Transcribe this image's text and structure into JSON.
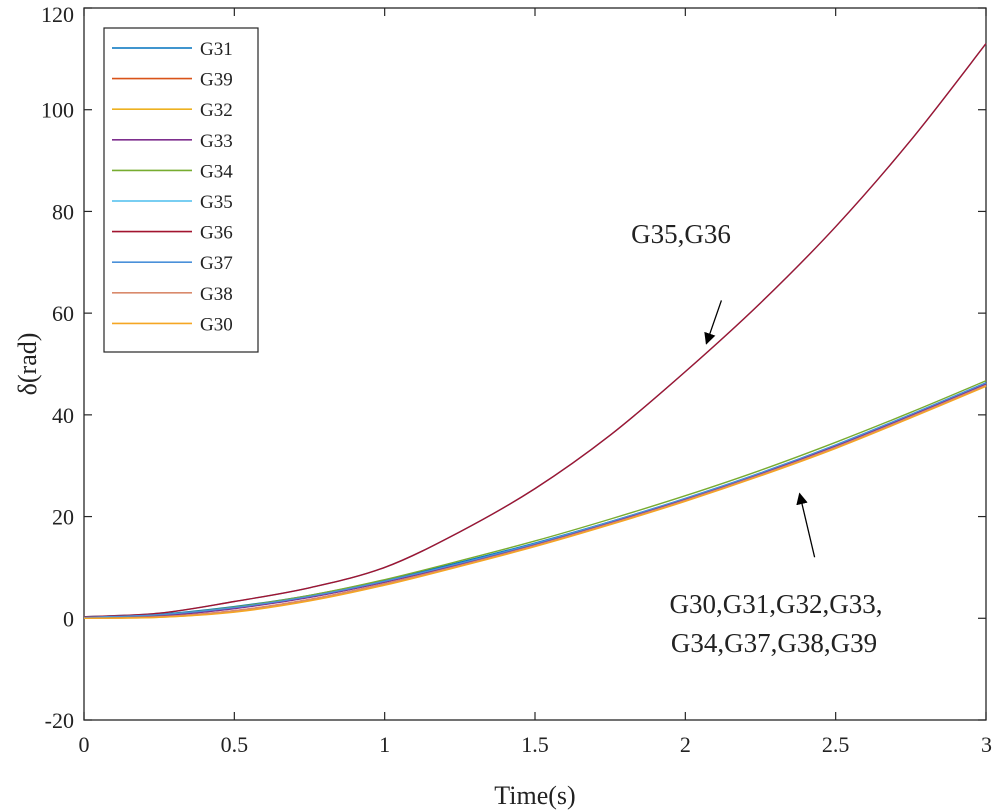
{
  "chart_data": {
    "type": "line",
    "xlabel": "Time(s)",
    "ylabel": "δ(rad)",
    "xlim": [
      0,
      3
    ],
    "ylim": [
      -20,
      120
    ],
    "x_ticks": [
      0,
      0.5,
      1,
      1.5,
      2,
      2.5,
      3
    ],
    "x_tick_labels": [
      "0",
      "0.5",
      "1",
      "1.5",
      "2",
      "2.5",
      "3"
    ],
    "y_ticks": [
      -20,
      0,
      20,
      40,
      60,
      80,
      100,
      120
    ],
    "y_tick_labels": [
      "-20",
      "0",
      "20",
      "40",
      "60",
      "80",
      "100",
      "120"
    ],
    "grid": false,
    "legend_position": "top-left",
    "x": [
      0,
      0.25,
      0.5,
      0.75,
      1,
      1.25,
      1.5,
      1.75,
      2,
      2.25,
      2.5,
      2.75,
      3
    ],
    "series": [
      {
        "name": "G31",
        "color": "#0072BD",
        "values": [
          0.3,
          0.8,
          2.3,
          4.5,
          7.5,
          11.0,
          14.8,
          19.0,
          23.5,
          28.5,
          34.0,
          40.0,
          46.3
        ]
      },
      {
        "name": "G39",
        "color": "#D95319",
        "values": [
          0.0,
          0.3,
          1.5,
          3.7,
          6.8,
          10.4,
          14.3,
          18.6,
          23.2,
          28.2,
          33.6,
          39.6,
          45.8
        ]
      },
      {
        "name": "G32",
        "color": "#EDB120",
        "values": [
          0.0,
          0.2,
          1.3,
          3.5,
          6.6,
          10.3,
          14.2,
          18.5,
          23.1,
          28.1,
          33.5,
          39.5,
          45.7
        ]
      },
      {
        "name": "G33",
        "color": "#7E2F8E",
        "values": [
          0.1,
          0.5,
          1.9,
          4.1,
          7.1,
          10.6,
          14.5,
          18.8,
          23.4,
          28.4,
          33.9,
          39.9,
          46.1
        ]
      },
      {
        "name": "G34",
        "color": "#77AC30",
        "values": [
          0.2,
          0.7,
          2.2,
          4.5,
          7.6,
          11.3,
          15.2,
          19.5,
          24.1,
          29.1,
          34.6,
          40.5,
          46.7
        ]
      },
      {
        "name": "G35",
        "color": "#4DBEEE",
        "values": [
          0.3,
          1.0,
          3.3,
          6.0,
          10.0,
          17.0,
          25.5,
          36.0,
          48.5,
          62.0,
          77.0,
          94.0,
          113.0
        ]
      },
      {
        "name": "G36",
        "color": "#A2142F",
        "values": [
          0.3,
          1.0,
          3.3,
          6.0,
          10.0,
          17.0,
          25.5,
          36.0,
          48.5,
          62.0,
          77.0,
          94.0,
          113.0
        ]
      },
      {
        "name": "G37",
        "color": "#4A90D9",
        "values": [
          0.2,
          0.7,
          2.1,
          4.3,
          7.3,
          10.8,
          14.7,
          19.0,
          23.6,
          28.6,
          34.1,
          40.1,
          46.3
        ]
      },
      {
        "name": "G38",
        "color": "#D98A6C",
        "values": [
          0.0,
          0.3,
          1.5,
          3.7,
          6.8,
          10.4,
          14.3,
          18.6,
          23.2,
          28.2,
          33.6,
          39.6,
          45.8
        ]
      },
      {
        "name": "G30",
        "color": "#F5A623",
        "values": [
          0.0,
          0.2,
          1.2,
          3.4,
          6.5,
          10.2,
          14.1,
          18.4,
          23.0,
          28.0,
          33.4,
          39.4,
          45.6
        ]
      }
    ],
    "annotations": [
      {
        "text": "G35,G36",
        "arrow_from": [
          2.12,
          62.5
        ],
        "arrow_to": [
          2.07,
          54.0
        ]
      },
      {
        "text": "G30,G31,G32,G33,",
        "arrow_from": [
          2.43,
          12.0
        ],
        "arrow_to": [
          2.38,
          24.5
        ]
      },
      {
        "text": "G34,G37,G38,G39",
        "arrow_from": null,
        "arrow_to": null
      }
    ]
  }
}
